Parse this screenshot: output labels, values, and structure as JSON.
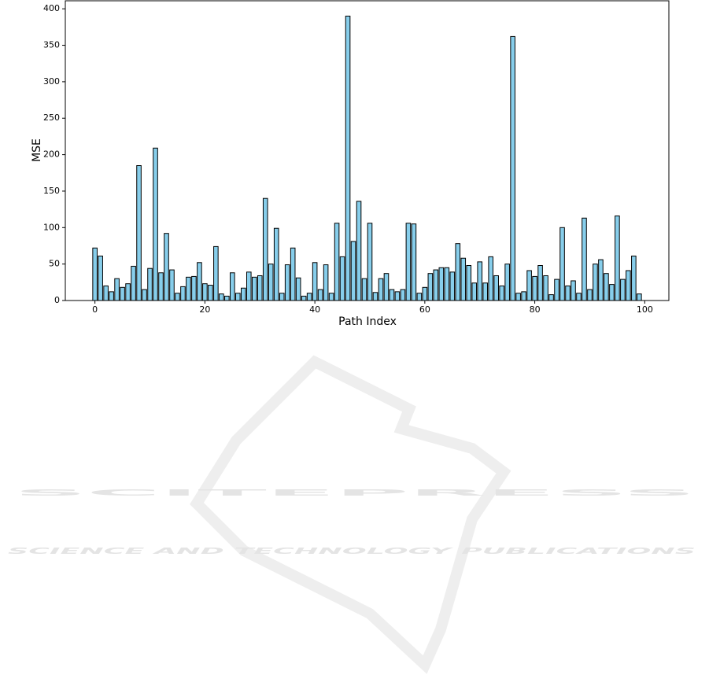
{
  "chart_data": {
    "type": "bar",
    "x_label": "Path Index",
    "y_label": "MSE",
    "x": [
      0,
      1,
      2,
      3,
      4,
      5,
      6,
      7,
      8,
      9,
      10,
      11,
      12,
      13,
      14,
      15,
      16,
      17,
      18,
      19,
      20,
      21,
      22,
      23,
      24,
      25,
      26,
      27,
      28,
      29,
      30,
      31,
      32,
      33,
      34,
      35,
      36,
      37,
      38,
      39,
      40,
      41,
      42,
      43,
      44,
      45,
      46,
      47,
      48,
      49,
      50,
      51,
      52,
      53,
      54,
      55,
      56,
      57,
      58,
      59,
      60,
      61,
      62,
      63,
      64,
      65,
      66,
      67,
      68,
      69,
      70,
      71,
      72,
      73,
      74,
      75,
      76,
      77,
      78,
      79,
      80,
      81,
      82,
      83,
      84,
      85,
      86,
      87,
      88,
      89,
      90,
      91,
      92,
      93,
      94,
      95,
      96,
      97,
      98,
      99
    ],
    "values": [
      72,
      61,
      20,
      12,
      30,
      18,
      23,
      47,
      185,
      15,
      44,
      209,
      38,
      92,
      42,
      10,
      19,
      32,
      33,
      52,
      23,
      21,
      74,
      9,
      6,
      38,
      10,
      17,
      39,
      32,
      34,
      140,
      50,
      99,
      10,
      49,
      72,
      31,
      6,
      10,
      52,
      15,
      49,
      10,
      106,
      60,
      390,
      81,
      136,
      30,
      106,
      11,
      30,
      37,
      15,
      12,
      15,
      106,
      105,
      10,
      18,
      37,
      42,
      45,
      45,
      39,
      78,
      58,
      48,
      24,
      53,
      24,
      60,
      34,
      20,
      50,
      362,
      10,
      12,
      41,
      33,
      48,
      34,
      8,
      29,
      100,
      20,
      27,
      10,
      113,
      15,
      50,
      56,
      37,
      22,
      116,
      29,
      41,
      61,
      9
    ],
    "color": "#87ceeb",
    "edge_color": "#000000",
    "xlim": [
      -5.39,
      104.39
    ],
    "xticks": [
      0,
      20,
      40,
      60,
      80,
      100
    ],
    "ylim": [
      0,
      411
    ],
    "yticks": [
      0,
      50,
      100,
      150,
      200,
      250,
      300,
      350,
      400
    ]
  },
  "watermark": {
    "title": "SCITEPRESS",
    "subtitle": "SCIENCE AND TECHNOLOGY PUBLICATIONS"
  }
}
